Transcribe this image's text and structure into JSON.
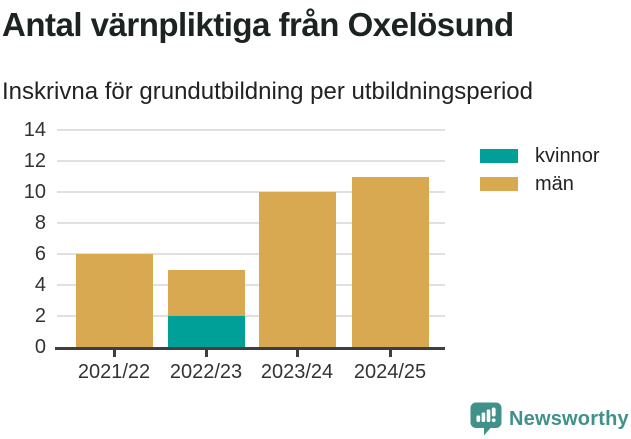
{
  "title": "Antal värnpliktiga från Oxelösund",
  "subtitle": "Inskrivna för grundutbildning per utbildningsperiod",
  "chart_data": {
    "type": "bar",
    "stacked": true,
    "title": "Antal värnpliktiga från Oxelösund",
    "subtitle": "Inskrivna för grundutbildning per utbildningsperiod",
    "categories": [
      "2021/22",
      "2022/23",
      "2023/24",
      "2024/25"
    ],
    "series": [
      {
        "name": "kvinnor",
        "color": "#00a098",
        "values": [
          0,
          2,
          0,
          0
        ]
      },
      {
        "name": "män",
        "color": "#d9a952",
        "values": [
          6,
          3,
          10,
          11
        ]
      }
    ],
    "totals": [
      6,
      5,
      10,
      11
    ],
    "xlabel": "",
    "ylabel": "",
    "ylim": [
      0,
      14
    ],
    "yticks": [
      0,
      2,
      4,
      6,
      8,
      10,
      12,
      14
    ],
    "grid": true,
    "legend_position": "right"
  },
  "legend": {
    "items": [
      {
        "label": "kvinnor",
        "color": "#00a098"
      },
      {
        "label": "män",
        "color": "#d9a952"
      }
    ]
  },
  "footer": {
    "brand": "Newsworthy"
  },
  "colors": {
    "kvinnor": "#00a098",
    "man": "#d9a952",
    "brand": "#41918b",
    "axis_text": "#333333",
    "gridline": "#e0e0e2",
    "baseline": "#3e3e3e"
  }
}
